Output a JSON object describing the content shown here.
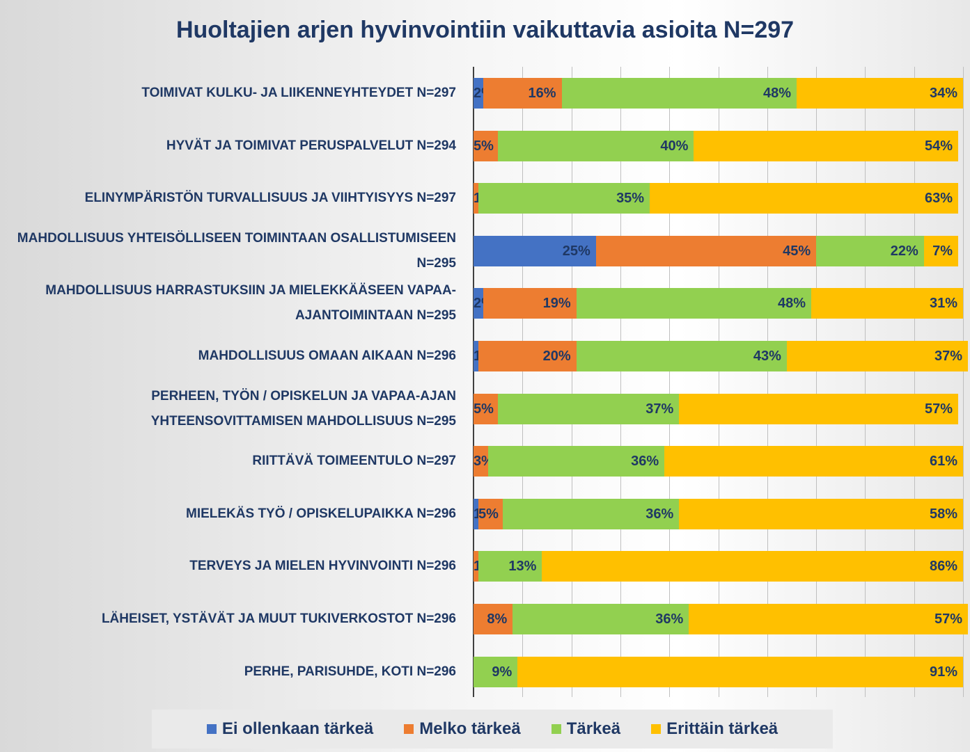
{
  "chart_data": {
    "type": "stacked-bar-horizontal",
    "title": "Huoltajien arjen hyvinvointiin vaikuttavia asioita N=297",
    "categories": [
      "TOIMIVAT KULKU- JA LIIKENNEYHTEYDET N=297",
      "HYVÄT JA TOIMIVAT PERUSPALVELUT N=294",
      "ELINYMPÄRISTÖN TURVALLISUUS JA VIIHTYISYYS N=297",
      "MAHDOLLISUUS YHTEISÖLLISEEN TOIMINTAAN OSALLISTUMISEEN N=295",
      "MAHDOLLISUUS HARRASTUKSIIN JA MIELEKKÄÄSEEN VAPAA-AJANTOIMINTAAN N=295",
      "MAHDOLLISUUS OMAAN AIKAAN N=296",
      "PERHEEN, TYÖN / OPISKELUN JA VAPAA-AJAN YHTEENSOVITTAMISEN MAHDOLLISUUS N=295",
      "RIITTÄVÄ TOIMEENTULO N=297",
      "MIELEKÄS TYÖ / OPISKELUPAIKKA N=296",
      "TERVEYS JA MIELEN HYVINVOINTI N=296",
      "LÄHEISET, YSTÄVÄT JA MUUT TUKIVERKOSTOT N=296",
      "PERHE, PARISUHDE, KOTI N=296"
    ],
    "series": [
      {
        "name": "Ei ollenkaan tärkeä",
        "color": "#4472c4",
        "values": [
          2,
          0,
          0,
          25,
          2,
          1,
          0,
          0,
          1,
          0,
          0,
          0
        ],
        "value_labels": [
          "2%",
          null,
          null,
          "25%",
          "2%",
          "1%",
          null,
          null,
          "1%",
          null,
          null,
          null
        ]
      },
      {
        "name": "Melko tärkeä",
        "color": "#ed7d31",
        "values": [
          16,
          5,
          1,
          45,
          19,
          20,
          5,
          3,
          5,
          1,
          8,
          0
        ],
        "value_labels": [
          "16%",
          "5%",
          "1%",
          "45%",
          "19%",
          "20%",
          "5%",
          "3%",
          "5%",
          "1%",
          "8%",
          null
        ]
      },
      {
        "name": "Tärkeä",
        "color": "#92d050",
        "values": [
          48,
          40,
          35,
          22,
          48,
          43,
          37,
          36,
          36,
          13,
          36,
          9
        ],
        "value_labels": [
          "48%",
          "40%",
          "35%",
          "22%",
          "48%",
          "43%",
          "37%",
          "36%",
          "36%",
          "13%",
          "36%",
          "9%"
        ]
      },
      {
        "name": "Erittäin tärkeä",
        "color": "#ffc000",
        "values": [
          34,
          54,
          63,
          7,
          31,
          37,
          57,
          61,
          58,
          86,
          57,
          91
        ],
        "value_labels": [
          "34%",
          "54%",
          "63%",
          "7%",
          "31%",
          "37%",
          "57%",
          "61%",
          "58%",
          "86%",
          "57%",
          "91%"
        ]
      }
    ],
    "xlim": [
      0,
      100
    ],
    "xticks": [
      0,
      10,
      20,
      30,
      40,
      50,
      60,
      70,
      80,
      90,
      100
    ],
    "grid": true
  }
}
